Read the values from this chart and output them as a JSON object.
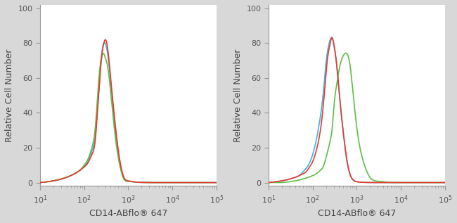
{
  "xlabel": "CD14-ABflo® 647",
  "ylabel": "Relative Cell Number",
  "xlim": [
    10,
    100000
  ],
  "ylim": [
    -2,
    102
  ],
  "yticks": [
    0,
    20,
    40,
    60,
    80,
    100
  ],
  "colors": {
    "red": "#e8392a",
    "blue": "#3ab4e8",
    "green": "#5abf45"
  },
  "plot1": {
    "red": {
      "x": [
        10,
        15,
        20,
        30,
        40,
        50,
        60,
        70,
        80,
        100,
        120,
        150,
        180,
        200,
        220,
        250,
        280,
        300,
        350,
        400,
        500,
        600,
        700,
        800,
        1000,
        1500,
        2000,
        3000,
        5000,
        10000,
        30000,
        100000
      ],
      "y": [
        0,
        0.5,
        1,
        2,
        3,
        4,
        5,
        6,
        7,
        9,
        11,
        16,
        25,
        40,
        55,
        72,
        80,
        82,
        75,
        60,
        35,
        18,
        8,
        3,
        1,
        0.3,
        0.1,
        0,
        0,
        0,
        0,
        0
      ]
    },
    "blue": {
      "x": [
        10,
        15,
        20,
        30,
        40,
        50,
        60,
        70,
        80,
        100,
        120,
        150,
        180,
        200,
        220,
        250,
        280,
        300,
        350,
        400,
        500,
        600,
        700,
        800,
        1000,
        1500,
        2000,
        3000,
        5000,
        10000,
        30000,
        100000
      ],
      "y": [
        0,
        0.5,
        1,
        2,
        3,
        4,
        5,
        6,
        7,
        9,
        12,
        18,
        28,
        44,
        58,
        74,
        80,
        80,
        72,
        58,
        32,
        16,
        7,
        2.5,
        0.8,
        0.2,
        0.1,
        0,
        0,
        0,
        0,
        0
      ]
    },
    "green": {
      "x": [
        10,
        15,
        20,
        30,
        40,
        50,
        60,
        70,
        80,
        100,
        120,
        150,
        180,
        200,
        220,
        250,
        280,
        300,
        350,
        400,
        500,
        600,
        700,
        800,
        1000,
        1500,
        2000,
        3000,
        5000,
        10000,
        30000,
        100000
      ],
      "y": [
        0,
        0.5,
        1,
        2,
        3,
        4,
        5,
        6,
        7,
        10,
        13,
        20,
        32,
        48,
        62,
        72,
        74,
        72,
        65,
        52,
        28,
        14,
        6,
        2,
        0.7,
        0.2,
        0.1,
        0,
        0,
        0,
        0,
        0
      ]
    }
  },
  "plot2": {
    "red": {
      "x": [
        10,
        15,
        20,
        30,
        40,
        50,
        60,
        70,
        80,
        100,
        120,
        150,
        180,
        200,
        220,
        250,
        280,
        300,
        350,
        400,
        500,
        600,
        700,
        800,
        1000,
        1500,
        2000,
        3000,
        5000,
        10000,
        30000,
        100000
      ],
      "y": [
        0,
        0.5,
        1,
        2,
        3,
        4,
        5,
        6,
        8,
        12,
        18,
        30,
        48,
        62,
        72,
        80,
        83,
        80,
        68,
        52,
        28,
        13,
        5,
        2,
        0.5,
        0.1,
        0,
        0,
        0,
        0,
        0,
        0
      ]
    },
    "blue": {
      "x": [
        10,
        15,
        20,
        30,
        40,
        50,
        60,
        70,
        80,
        100,
        120,
        150,
        180,
        200,
        220,
        250,
        280,
        300,
        350,
        400,
        500,
        600,
        700,
        800,
        1000,
        1500,
        2000,
        3000,
        5000,
        10000,
        30000,
        100000
      ],
      "y": [
        0,
        0.5,
        1,
        2,
        3,
        4,
        6,
        8,
        10,
        16,
        24,
        38,
        55,
        68,
        76,
        82,
        83,
        80,
        68,
        52,
        28,
        12,
        5,
        1.8,
        0.5,
        0.1,
        0,
        0,
        0,
        0,
        0,
        0
      ]
    },
    "green": {
      "x": [
        10,
        15,
        20,
        30,
        40,
        50,
        60,
        70,
        80,
        100,
        120,
        150,
        180,
        200,
        220,
        250,
        280,
        300,
        350,
        400,
        500,
        600,
        700,
        800,
        1000,
        1500,
        2000,
        3000,
        5000,
        10000,
        30000,
        100000
      ],
      "y": [
        0,
        0,
        0,
        0.5,
        1,
        1.5,
        2,
        2.5,
        3,
        4,
        5,
        7,
        10,
        14,
        18,
        24,
        32,
        42,
        56,
        65,
        73,
        74,
        68,
        55,
        32,
        10,
        3,
        0.8,
        0.2,
        0,
        0,
        0
      ]
    }
  },
  "linewidth": 1.2,
  "panel_bg": "#ffffff",
  "fig_bg": "#d8d8d8",
  "spine_color": "#999999",
  "tick_color": "#555555",
  "label_color": "#444444",
  "xlabel_fontsize": 9,
  "ylabel_fontsize": 9,
  "tick_fontsize": 8
}
